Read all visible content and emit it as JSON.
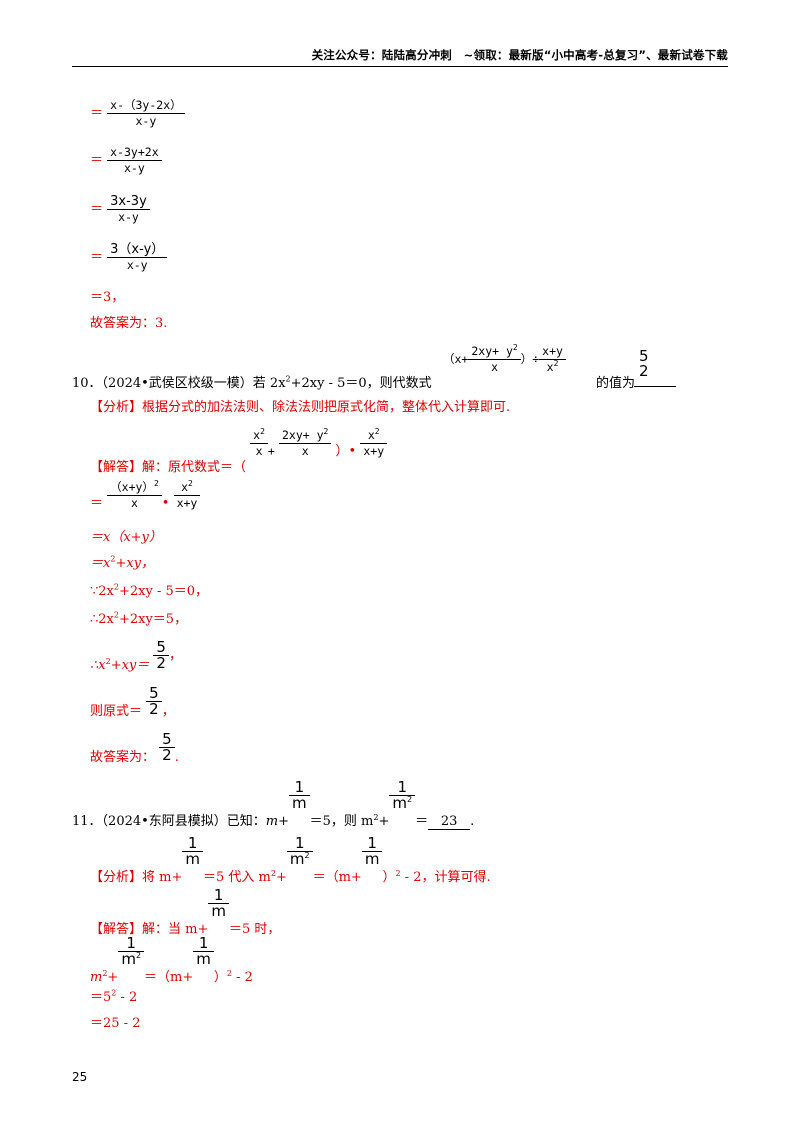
{
  "header": {
    "text": "关注公众号：陆陆高分冲刺　~领取：最新版“小中高考-总复习”、最新试卷下载"
  },
  "page_number": "25",
  "q9_tail": {
    "eq": "＝",
    "s1": {
      "num": "x-（3y-2x）",
      "den": "x-y"
    },
    "s2": {
      "num": "x-3y+2x",
      "den": "x-y"
    },
    "s3": {
      "num": "3x-3y",
      "den": "x-y"
    },
    "s4": {
      "num": "3（x-y）",
      "den": "x-y"
    },
    "s5": "＝3，",
    "answer": "故答案为：3."
  },
  "q10": {
    "label": "10．（2024•武侯区校级一模）若 2x",
    "sup2": "2",
    "cond_tail": "+2xy - 5＝0，则代数式",
    "expr_open": "（x+",
    "expr_num": "2xy+ y",
    "expr_num_sup": "2",
    "expr_den": "x",
    "expr_close": "）÷",
    "expr2_num": "x+y",
    "expr2_den": "x",
    "expr2_den_sup": "2",
    "value_of": "的值为",
    "answer_num": "5",
    "answer_den": "2",
    "analysis": "【分析】根据分式的加法法则、除法法则把原式化简，整体代入计算即可.",
    "solution_label": "【解答】解：原代数式＝（",
    "sol_f1_num": "x",
    "sol_f1_sup": "2",
    "sol_f1_den": "x",
    "sol_plus": "+",
    "sol_f2_num": "2xy+ y",
    "sol_f2_sup": "2",
    "sol_f2_den": "x",
    "sol_close": "）",
    "sol_f3_num": "x",
    "sol_f3_sup": "2",
    "sol_f3_den": "x+y",
    "step2_num": "（x+y）",
    "step2_num_sup": "2",
    "step2_den": "x",
    "step2_f_num": "x",
    "step2_f_sup": "2",
    "step2_f_den": "x+y",
    "step3": "＝x（x+y）",
    "step4a": "＝x",
    "step4b": "+xy，",
    "step5a": "∵2x",
    "step5b": "+2xy - 5＝0，",
    "step6a": "∴2x",
    "step6b": "+2xy＝5，",
    "step7a": "∴x",
    "step7b": "+xy＝",
    "step8": "则原式＝",
    "final": "故答案为："
  },
  "q11": {
    "label": "11．（2024•东阿县模拟）已知：",
    "m": "m+",
    "one": "1",
    "mden": "m",
    "eq5": "＝5，则 m",
    "plus": "+",
    "m2": "m",
    "eq": "＝",
    "answer": "23",
    "analysis_a": "【分析】将 m+",
    "analysis_b": "＝5 代入 m",
    "analysis_c": "＝（m+",
    "analysis_d": "）",
    "analysis_e": " - 2，计算可得.",
    "solution_a": "【解答】解：当 m+",
    "solution_b": "＝5 时，",
    "line2_a": "m",
    "line2_b": "＝（m+",
    "line2_c": "）",
    "line2_d": " - 2",
    "line3": "＝5",
    "line3_b": " - 2",
    "line4": "＝25 - 2"
  }
}
